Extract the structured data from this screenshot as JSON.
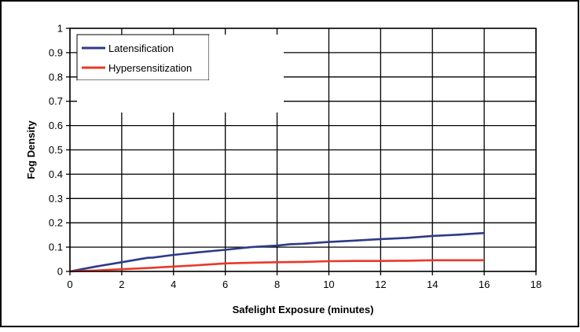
{
  "chart_data": {
    "type": "line",
    "title": "",
    "xlabel": "Safelight Exposure (minutes)",
    "ylabel": "Fog Density",
    "xlim": [
      0,
      18
    ],
    "ylim": [
      0,
      1
    ],
    "xticks": [
      0,
      2,
      4,
      6,
      8,
      10,
      12,
      14,
      16,
      18
    ],
    "yticks": [
      0,
      0.1,
      0.2,
      0.3,
      0.4,
      0.5,
      0.6,
      0.7,
      0.8,
      0.9,
      1
    ],
    "xtick_labels": [
      "0",
      "2",
      "4",
      "6",
      "8",
      "10",
      "12",
      "14",
      "16",
      "18"
    ],
    "ytick_labels": [
      "0",
      "0.1",
      "0.2",
      "0.3",
      "0.4",
      "0.5",
      "0.6",
      "0.7",
      "0.8",
      "0.9",
      "1"
    ],
    "grid": true,
    "legend_position": "top-left",
    "series": [
      {
        "name": "Latensification",
        "color": "#2e3a87",
        "x": [
          0,
          1,
          2,
          3,
          3.2,
          4,
          5,
          6,
          7,
          8,
          8.5,
          9,
          10,
          11,
          12,
          13,
          14,
          15,
          16
        ],
        "y": [
          0,
          0.02,
          0.038,
          0.056,
          0.057,
          0.068,
          0.079,
          0.089,
          0.1,
          0.106,
          0.112,
          0.114,
          0.121,
          0.127,
          0.133,
          0.138,
          0.146,
          0.151,
          0.158
        ]
      },
      {
        "name": "Hypersensitization",
        "color": "#e8392a",
        "x": [
          0,
          1,
          2,
          3,
          4,
          5,
          6,
          7,
          8,
          9,
          10,
          11,
          12,
          13,
          14,
          15,
          16
        ],
        "y": [
          0,
          0.004,
          0.009,
          0.014,
          0.02,
          0.026,
          0.033,
          0.036,
          0.038,
          0.039,
          0.042,
          0.043,
          0.043,
          0.044,
          0.046,
          0.046,
          0.046
        ]
      }
    ]
  }
}
